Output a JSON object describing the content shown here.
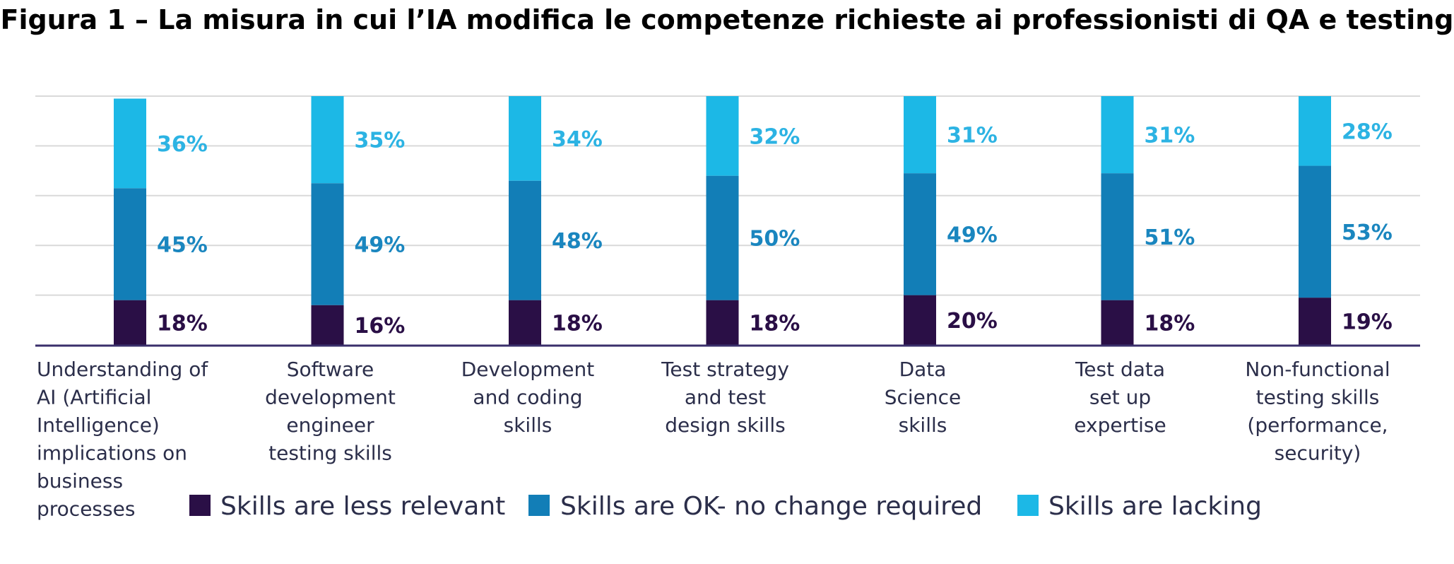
{
  "title": "Figura 1 – La misura in cui l’IA modifica le competenze richieste ai professionisti di QA e testing",
  "chart_data": {
    "type": "bar",
    "stacked": true,
    "categories": [
      [
        "Understanding of",
        "AI (Artificial",
        "Intelligence)",
        "implications on",
        "business",
        "processes"
      ],
      [
        "Software",
        "development",
        "engineer",
        "testing skills"
      ],
      [
        "Development",
        "and coding",
        "skills"
      ],
      [
        "Test strategy",
        "and test",
        "design skills"
      ],
      [
        "Data",
        "Science",
        "skills"
      ],
      [
        "Test data",
        "set up",
        "expertise"
      ],
      [
        "Non-functional",
        "testing skills",
        "(performance,",
        "security)"
      ]
    ],
    "series": [
      {
        "name": "Skills are less relevant",
        "color": "#2a0f46",
        "label_color": "#2a0f46",
        "values": [
          18,
          16,
          18,
          18,
          20,
          18,
          19
        ],
        "labels": [
          "18%",
          "16%",
          "18%",
          "18%",
          "20%",
          "18%",
          "19%"
        ]
      },
      {
        "name": "Skills are OK- no change required",
        "color": "#127eb7",
        "label_color": "#1a86bf",
        "values": [
          45,
          49,
          48,
          50,
          49,
          51,
          53
        ],
        "labels": [
          "45%",
          "49%",
          "48%",
          "50%",
          "49%",
          "51%",
          "53%"
        ]
      },
      {
        "name": "Skills are lacking",
        "color": "#1cb8e6",
        "label_color": "#2cb3e3",
        "values": [
          36,
          35,
          34,
          32,
          31,
          31,
          28
        ],
        "labels": [
          "36%",
          "35%",
          "34%",
          "32%",
          "31%",
          "31%",
          "28%"
        ]
      }
    ],
    "ylim": [
      0,
      100
    ],
    "grid": true,
    "legend_position": "bottom",
    "axis_color": "#3a2f6b",
    "grid_color": "#d9d9d9"
  }
}
